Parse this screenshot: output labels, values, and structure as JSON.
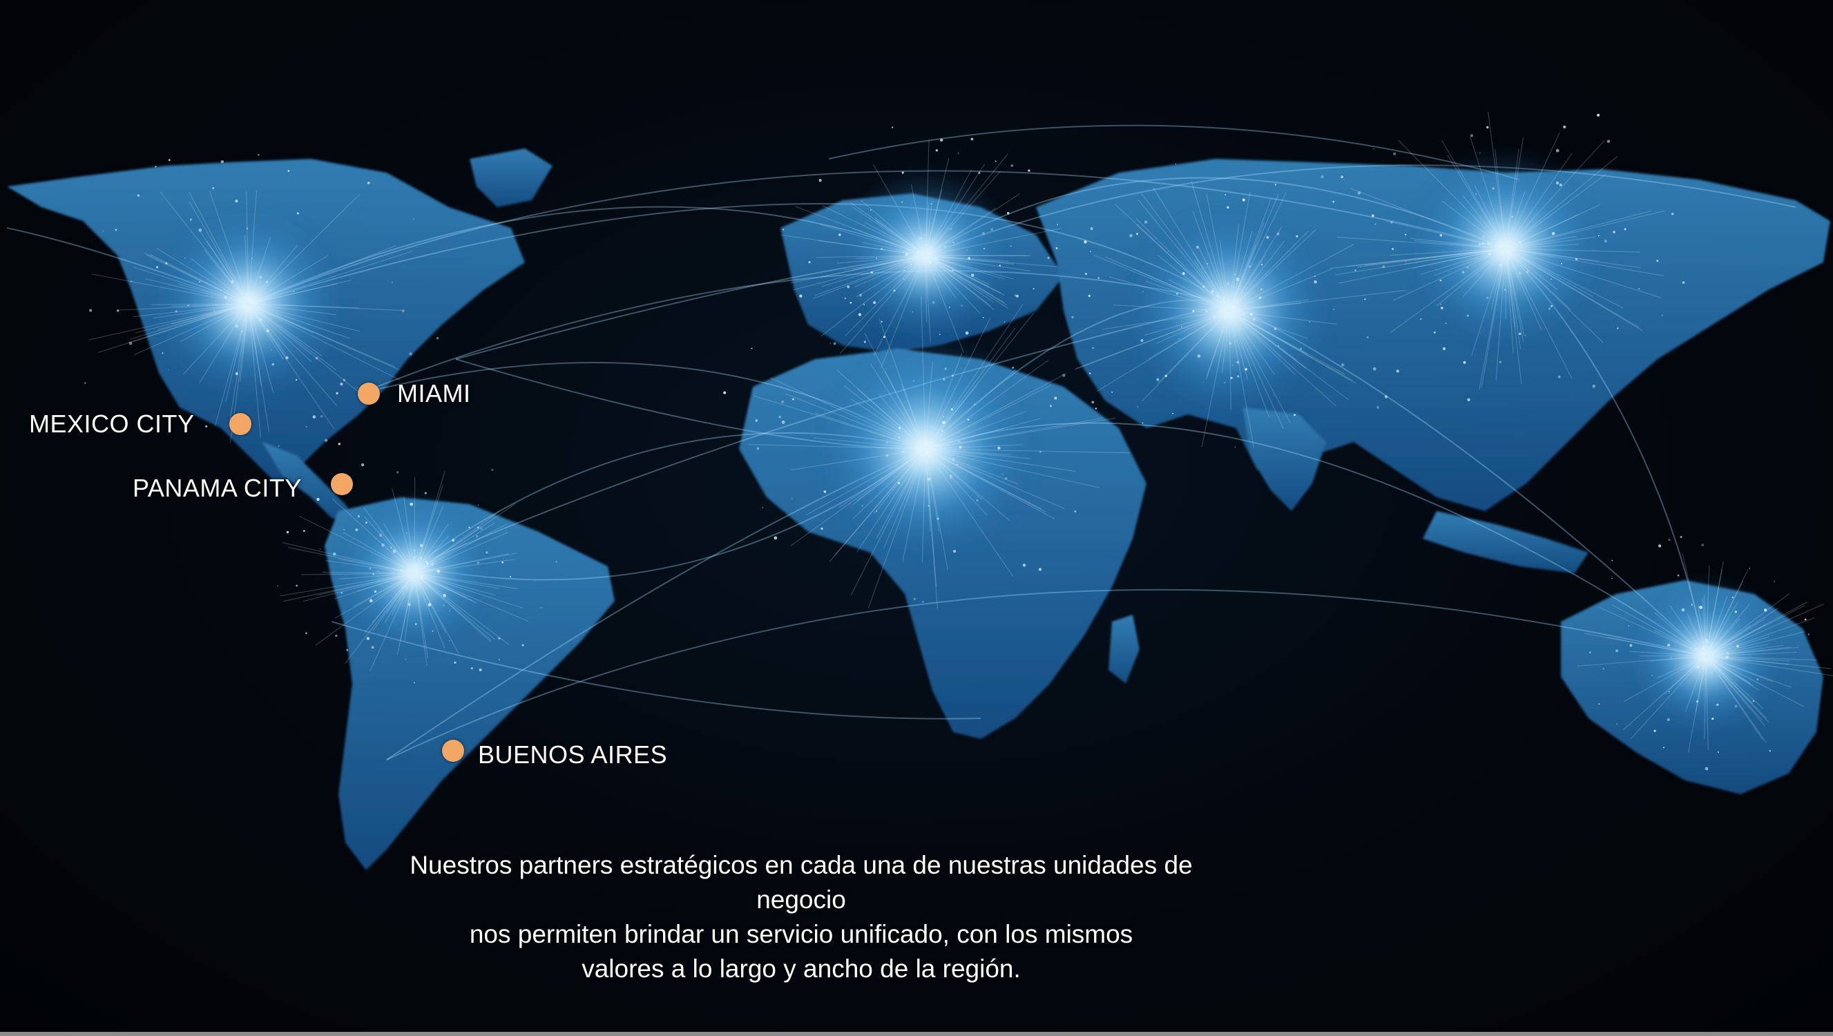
{
  "map": {
    "background_color": "#02060c",
    "glow_color": "#7fd0ff",
    "land_color": "#1f6fb2",
    "marker_color": "#f2a765",
    "cities": [
      {
        "id": "mexico-city",
        "label": "MEXICO CITY"
      },
      {
        "id": "miami",
        "label": "MIAMI"
      },
      {
        "id": "panama-city",
        "label": "PANAMA CITY"
      },
      {
        "id": "buenos-aires",
        "label": "BUENOS AIRES"
      }
    ]
  },
  "caption": {
    "lines": [
      "Nuestros partners estratégicos en cada una de nuestras unidades de negocio",
      "nos permiten brindar un servicio unificado, con los mismos",
      "valores a lo largo y ancho de la región."
    ]
  }
}
